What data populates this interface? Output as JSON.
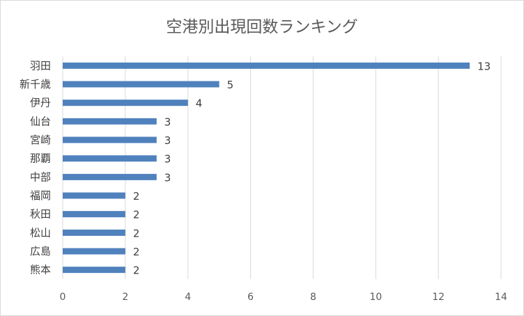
{
  "chart_data": {
    "type": "bar",
    "orientation": "horizontal",
    "title": "空港別出現回数ランキング",
    "categories": [
      "羽田",
      "新千歳",
      "伊丹",
      "仙台",
      "宮崎",
      "那覇",
      "中部",
      "福岡",
      "秋田",
      "松山",
      "広島",
      "熊本"
    ],
    "values": [
      13,
      5,
      4,
      3,
      3,
      3,
      3,
      2,
      2,
      2,
      2,
      2
    ],
    "xlim": [
      0,
      14
    ],
    "xticks": [
      0,
      2,
      4,
      6,
      8,
      10,
      12,
      14
    ],
    "grid": true,
    "data_labels": true,
    "bar_color": "#4f81bd",
    "grid_color": "#d9d9d9"
  }
}
